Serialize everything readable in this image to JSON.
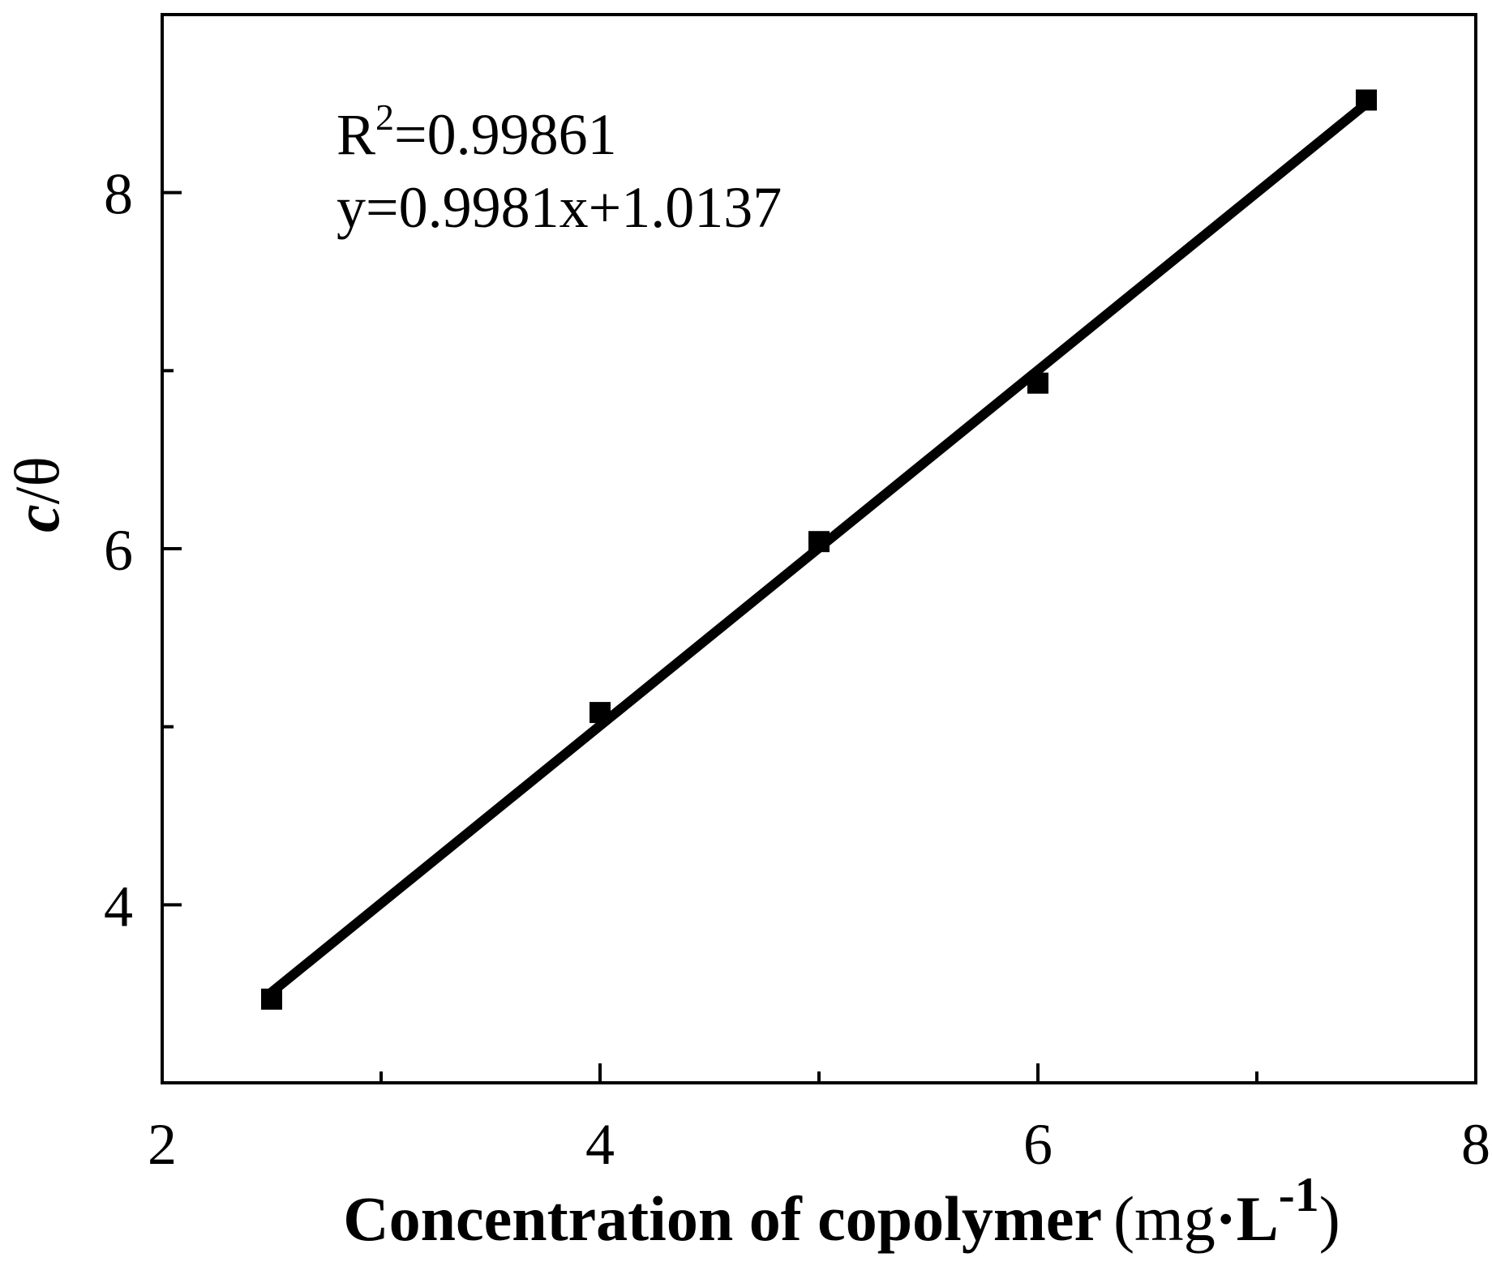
{
  "chart_data": {
    "type": "scatter",
    "xlabel": "Concentration of copolymer (mg·L⁻¹)",
    "ylabel": "c/θ",
    "xlim": [
      2,
      8
    ],
    "ylim": [
      3,
      9
    ],
    "x_ticks_major": [
      2,
      4,
      6,
      8
    ],
    "x_ticks_minor": [
      3,
      5,
      7
    ],
    "y_ticks_major": [
      4,
      6,
      8
    ],
    "y_ticks_minor": [
      5,
      7
    ],
    "grid": false,
    "series": [
      {
        "marker": "square",
        "x": [
          2.5,
          4,
          5,
          6,
          7.5
        ],
        "y": [
          3.47,
          5.08,
          6.04,
          6.93,
          8.52
        ]
      }
    ],
    "fit": {
      "slope": 0.9981,
      "intercept": 1.0137,
      "x_range": [
        2.5,
        7.5
      ]
    },
    "annotations": {
      "r2_prefix": "R",
      "r2_sup": "2",
      "r2_value": "=0.99861",
      "equation": "y=0.9981x+1.0137"
    },
    "x_title": {
      "main": "Concentration of copolymer",
      "unit_open": "(mg",
      "unit_dot": "·",
      "unit_L": "L",
      "unit_sup": "-1",
      "unit_close": ")"
    },
    "y_title": {
      "c": "c",
      "rest": "/θ"
    }
  }
}
